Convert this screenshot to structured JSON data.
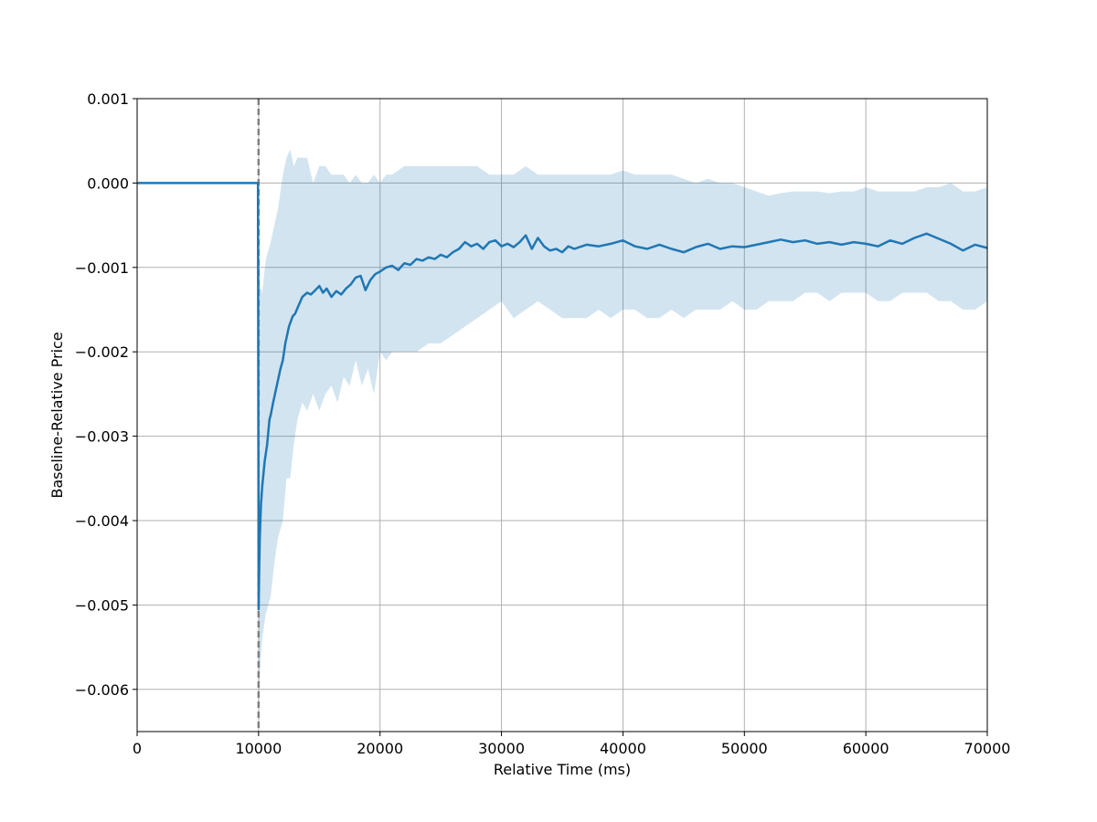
{
  "chart_data": {
    "type": "line",
    "title": "",
    "xlabel": "Relative Time (ms)",
    "ylabel": "Baseline-Relative Price",
    "xlim": [
      0,
      70000
    ],
    "ylim": [
      -0.0065,
      0.001
    ],
    "grid": true,
    "x_ticks": [
      0,
      10000,
      20000,
      30000,
      40000,
      50000,
      60000,
      70000
    ],
    "x_tick_labels": [
      "0",
      "10000",
      "20000",
      "30000",
      "40000",
      "50000",
      "60000",
      "70000"
    ],
    "y_ticks": [
      0.001,
      0.0,
      -0.001,
      -0.002,
      -0.003,
      -0.004,
      -0.005,
      -0.006
    ],
    "y_tick_labels": [
      "0.001",
      "0.000",
      "−0.001",
      "−0.002",
      "−0.003",
      "−0.004",
      "−0.005",
      "−0.006"
    ],
    "event_line": {
      "x": 10000,
      "color": "#808080",
      "style": "dashed"
    },
    "colors": {
      "series": "#1f77b4",
      "band": "#1f77b4",
      "grid": "#b0b0b0"
    },
    "series": [
      {
        "x": [
          0,
          9800,
          9950,
          10000,
          10050,
          10100,
          10200,
          10300,
          10500,
          10700,
          10900,
          11000,
          11200,
          11500,
          11800,
          12000,
          12200,
          12500,
          12800,
          13000,
          13300,
          13600,
          14000,
          14300,
          14600,
          15000,
          15300,
          15600,
          16000,
          16400,
          16800,
          17200,
          17600,
          18000,
          18400,
          18800,
          19200,
          19600,
          20000,
          20500,
          21000,
          21500,
          22000,
          22500,
          23000,
          23500,
          24000,
          24500,
          25000,
          25500,
          26000,
          26500,
          27000,
          27500,
          28000,
          28500,
          29000,
          29500,
          30000,
          30500,
          31000,
          31500,
          32000,
          32500,
          33000,
          33500,
          34000,
          34500,
          35000,
          35500,
          36000,
          37000,
          38000,
          39000,
          40000,
          41000,
          42000,
          43000,
          44000,
          45000,
          46000,
          47000,
          48000,
          49000,
          50000,
          51000,
          52000,
          53000,
          54000,
          55000,
          56000,
          57000,
          58000,
          59000,
          60000,
          61000,
          62000,
          63000,
          64000,
          65000,
          66000,
          67000,
          68000,
          69000,
          70000
        ],
        "y": [
          0.0,
          0.0,
          0.0,
          -0.00505,
          -0.0046,
          -0.0042,
          -0.0038,
          -0.0036,
          -0.0033,
          -0.0031,
          -0.0028,
          -0.00275,
          -0.0026,
          -0.0024,
          -0.0022,
          -0.0021,
          -0.0019,
          -0.0017,
          -0.00158,
          -0.00155,
          -0.00145,
          -0.00135,
          -0.0013,
          -0.00132,
          -0.00128,
          -0.00122,
          -0.0013,
          -0.00125,
          -0.00135,
          -0.00128,
          -0.00132,
          -0.00125,
          -0.0012,
          -0.00112,
          -0.0011,
          -0.00127,
          -0.00115,
          -0.00108,
          -0.00105,
          -0.001,
          -0.00098,
          -0.00103,
          -0.00095,
          -0.00097,
          -0.0009,
          -0.00092,
          -0.00088,
          -0.0009,
          -0.00085,
          -0.00088,
          -0.00082,
          -0.00078,
          -0.0007,
          -0.00075,
          -0.00072,
          -0.00078,
          -0.0007,
          -0.00068,
          -0.00075,
          -0.00072,
          -0.00076,
          -0.0007,
          -0.00062,
          -0.00078,
          -0.00065,
          -0.00075,
          -0.0008,
          -0.00078,
          -0.00082,
          -0.00075,
          -0.00078,
          -0.00073,
          -0.00075,
          -0.00072,
          -0.00068,
          -0.00075,
          -0.00078,
          -0.00073,
          -0.00078,
          -0.00082,
          -0.00076,
          -0.00072,
          -0.00078,
          -0.00075,
          -0.00076,
          -0.00073,
          -0.0007,
          -0.00067,
          -0.0007,
          -0.00068,
          -0.00072,
          -0.0007,
          -0.00073,
          -0.0007,
          -0.00072,
          -0.00075,
          -0.00068,
          -0.00072,
          -0.00065,
          -0.0006,
          -0.00066,
          -0.00072,
          -0.0008,
          -0.00073,
          -0.00077
        ]
      }
    ],
    "band": {
      "x": [
        10000,
        10100,
        10300,
        10600,
        11000,
        11300,
        11600,
        12000,
        12300,
        12600,
        12900,
        13200,
        13600,
        14000,
        14500,
        15000,
        15500,
        16000,
        16500,
        17000,
        17500,
        18000,
        18500,
        19000,
        19500,
        20000,
        20500,
        21000,
        22000,
        23000,
        24000,
        25000,
        26000,
        27000,
        28000,
        29000,
        30000,
        31000,
        32000,
        33000,
        34000,
        35000,
        36000,
        37000,
        38000,
        39000,
        40000,
        41000,
        42000,
        43000,
        44000,
        45000,
        46000,
        47000,
        48000,
        49000,
        50000,
        51000,
        52000,
        53000,
        54000,
        55000,
        56000,
        57000,
        58000,
        59000,
        60000,
        61000,
        62000,
        63000,
        64000,
        65000,
        66000,
        67000,
        68000,
        69000,
        70000
      ],
      "upper": [
        0.0,
        -0.0012,
        -0.0013,
        -0.0009,
        -0.0007,
        -0.0005,
        -0.0003,
        0.0001,
        0.0003,
        0.0004,
        0.0002,
        0.0003,
        0.0003,
        0.0003,
        0.0,
        0.0002,
        0.0002,
        0.0001,
        0.0001,
        0.0001,
        0.0,
        0.0001,
        0.0,
        0.0,
        0.0001,
        0.0,
        0.0001,
        0.0001,
        0.0002,
        0.0002,
        0.0002,
        0.0002,
        0.0002,
        0.0002,
        0.0002,
        0.0001,
        0.0001,
        0.0001,
        0.0002,
        0.0001,
        0.0001,
        0.0001,
        0.0001,
        0.0001,
        0.0001,
        0.0001,
        0.00015,
        0.0001,
        0.0001,
        0.0001,
        0.0001,
        5e-05,
        0.0,
        5e-05,
        0.0,
        0.0,
        -5e-05,
        -0.0001,
        -0.00015,
        -0.00012,
        -0.0001,
        -0.0001,
        -0.0001,
        -0.00012,
        -0.0001,
        -0.0001,
        -5e-05,
        -0.0001,
        -0.0001,
        -0.0001,
        -0.0001,
        -5e-05,
        -5e-05,
        0.0,
        -0.0001,
        -0.0001,
        -5e-05
      ],
      "lower": [
        -0.0063,
        -0.0058,
        -0.0054,
        -0.0051,
        -0.0049,
        -0.0045,
        -0.0042,
        -0.004,
        -0.0035,
        -0.0035,
        -0.0031,
        -0.0028,
        -0.0026,
        -0.0027,
        -0.0025,
        -0.0027,
        -0.0025,
        -0.0024,
        -0.0026,
        -0.0023,
        -0.0024,
        -0.0021,
        -0.0024,
        -0.0022,
        -0.0025,
        -0.002,
        -0.0021,
        -0.002,
        -0.002,
        -0.002,
        -0.0019,
        -0.0019,
        -0.0018,
        -0.0017,
        -0.0016,
        -0.0015,
        -0.0014,
        -0.0016,
        -0.0015,
        -0.0014,
        -0.0015,
        -0.0016,
        -0.0016,
        -0.0016,
        -0.0015,
        -0.0016,
        -0.0015,
        -0.0015,
        -0.0016,
        -0.0016,
        -0.0015,
        -0.0016,
        -0.0015,
        -0.0015,
        -0.0015,
        -0.0014,
        -0.0015,
        -0.0015,
        -0.0014,
        -0.0014,
        -0.0014,
        -0.0013,
        -0.0013,
        -0.0014,
        -0.0013,
        -0.0013,
        -0.0013,
        -0.0014,
        -0.0014,
        -0.0013,
        -0.0013,
        -0.0013,
        -0.0014,
        -0.0014,
        -0.0015,
        -0.0015,
        -0.0014
      ]
    }
  }
}
